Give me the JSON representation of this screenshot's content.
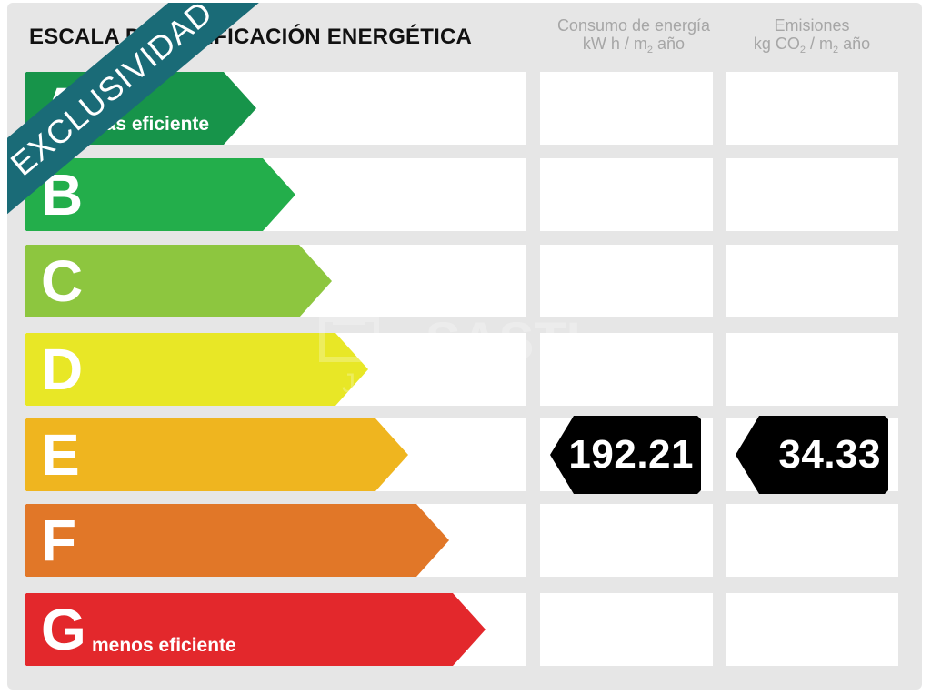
{
  "header": {
    "title": "ESCALA DE CALIFICACIÓN ENERGÉTICA",
    "consumption_line1": "Consumo de energía",
    "consumption_line2_a": "kW h / m",
    "consumption_line2_sub": "2",
    "consumption_line2_b": " año",
    "emissions_line1": "Emisiones",
    "emissions_line2_a": "kg CO",
    "emissions_line2_sub1": "2",
    "emissions_line2_mid": " / m",
    "emissions_line2_sub2": "2",
    "emissions_line2_b": " año"
  },
  "ribbon": {
    "label": "EXCLUSIVIDAD",
    "color": "#1a6b77"
  },
  "ratings": [
    {
      "letter": "A",
      "note": "más eficiente",
      "color": "#17944a"
    },
    {
      "letter": "B",
      "note": "",
      "color": "#23ae4b"
    },
    {
      "letter": "C",
      "note": "",
      "color": "#8dc63f"
    },
    {
      "letter": "D",
      "note": "",
      "color": "#e8e726"
    },
    {
      "letter": "E",
      "note": "",
      "color": "#efb51f"
    },
    {
      "letter": "F",
      "note": "",
      "color": "#e17728"
    },
    {
      "letter": "G",
      "note": "menos eficiente",
      "color": "#e3282c"
    }
  ],
  "current_rating": "E",
  "consumption_value": "192.21",
  "emissions_value": "34.33",
  "watermark": {
    "text": "SASTI",
    "subtext": "J  A  VA"
  }
}
